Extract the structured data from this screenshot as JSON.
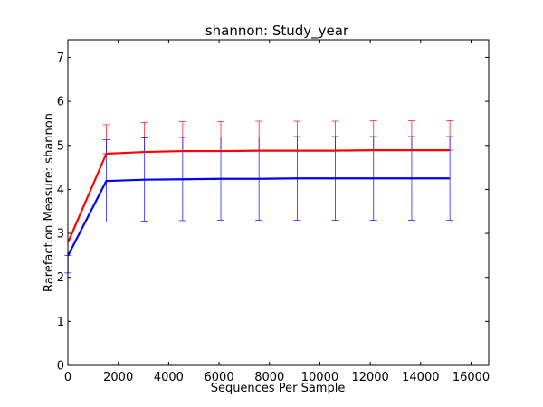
{
  "chart_data": {
    "type": "line",
    "title": "shannon: Study_year",
    "xlabel": "Sequences Per Sample",
    "ylabel": "Rarefaction Measure: shannon",
    "xlim": [
      0,
      16700
    ],
    "ylim": [
      0,
      7.4
    ],
    "xticks": [
      0,
      2000,
      4000,
      6000,
      8000,
      10000,
      12000,
      14000,
      16000
    ],
    "xtick_labels": [
      "0",
      "2000",
      "4000",
      "6000",
      "8000",
      "10000",
      "12000",
      "14000",
      "16000"
    ],
    "yticks": [
      0,
      1,
      2,
      3,
      4,
      5,
      6,
      7
    ],
    "ytick_labels": [
      "0",
      "1",
      "2",
      "3",
      "4",
      "5",
      "6",
      "7"
    ],
    "grid": false,
    "x": [
      10,
      1525,
      3040,
      4555,
      6070,
      7585,
      9100,
      10615,
      12130,
      13645,
      15160
    ],
    "series": [
      {
        "color": "#ff0000",
        "values": [
          2.8,
          4.81,
          4.85,
          4.87,
          4.87,
          4.88,
          4.88,
          4.88,
          4.89,
          4.89,
          4.89
        ],
        "err_low": [
          2.8,
          4.81,
          4.85,
          4.87,
          4.87,
          4.88,
          4.88,
          4.88,
          4.89,
          4.89,
          4.89
        ],
        "err_high": [
          2.8,
          5.47,
          5.52,
          5.54,
          5.54,
          5.55,
          5.55,
          5.55,
          5.56,
          5.56,
          5.56
        ]
      },
      {
        "color": "#0000ff",
        "values": [
          2.5,
          4.19,
          4.22,
          4.23,
          4.24,
          4.24,
          4.25,
          4.25,
          4.25,
          4.25,
          4.25
        ],
        "err_low": [
          2.1,
          3.26,
          3.28,
          3.29,
          3.3,
          3.3,
          3.3,
          3.3,
          3.3,
          3.3,
          3.3
        ],
        "err_high": [
          2.5,
          5.13,
          5.17,
          5.18,
          5.19,
          5.19,
          5.2,
          5.2,
          5.2,
          5.2,
          5.2
        ]
      }
    ]
  }
}
